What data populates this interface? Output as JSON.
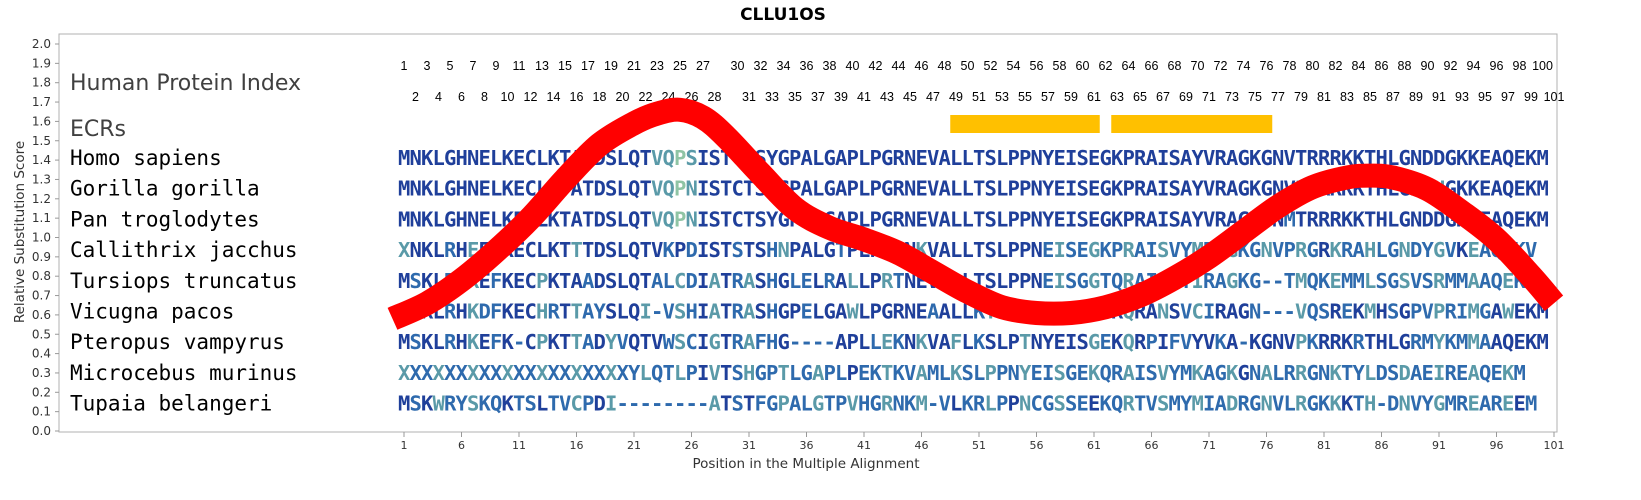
{
  "chart_data": {
    "type": "line",
    "title": "CLLU1OS",
    "xlabel": "Position in the Multiple Alignment",
    "ylabel": "Relative Substitution Score",
    "ylim": [
      0.0,
      2.0
    ],
    "xlim": [
      1,
      101
    ],
    "yticks": [
      "0.0",
      "0.1",
      "0.2",
      "0.3",
      "0.4",
      "0.5",
      "0.6",
      "0.7",
      "0.8",
      "0.9",
      "1.0",
      "1.1",
      "1.2",
      "1.3",
      "1.4",
      "1.5",
      "1.6",
      "1.7",
      "1.8",
      "1.9",
      "2.0"
    ],
    "xticks": [
      "1",
      "6",
      "11",
      "16",
      "21",
      "26",
      "31",
      "36",
      "41",
      "46",
      "51",
      "56",
      "61",
      "66",
      "71",
      "76",
      "81",
      "86",
      "91",
      "96",
      "101"
    ],
    "grid": false,
    "series": [
      {
        "color": "#ff0000",
        "x": [
          0,
          3,
          6,
          9,
          12,
          15,
          18,
          21,
          23,
          25,
          27,
          29,
          32,
          35,
          38,
          41,
          44,
          47,
          50,
          53,
          56,
          59,
          62,
          65,
          68,
          71,
          74,
          77,
          80,
          83,
          85,
          87,
          90,
          93,
          96,
          99,
          101
        ],
        "y": [
          0.58,
          0.66,
          0.78,
          0.93,
          1.1,
          1.3,
          1.48,
          1.59,
          1.64,
          1.66,
          1.62,
          1.52,
          1.33,
          1.15,
          1.05,
          0.99,
          0.92,
          0.82,
          0.72,
          0.64,
          0.61,
          0.61,
          0.64,
          0.7,
          0.79,
          0.9,
          1.03,
          1.16,
          1.26,
          1.31,
          1.32,
          1.31,
          1.25,
          1.13,
          0.99,
          0.8,
          0.66
        ]
      }
    ],
    "alignment": {
      "human_index_label": "Human Protein Index",
      "ecr_label": "ECRs",
      "human_index_top": [
        1,
        3,
        5,
        7,
        9,
        11,
        13,
        15,
        17,
        19,
        21,
        23,
        25,
        27,
        30,
        32,
        34,
        36,
        38,
        40,
        42,
        44,
        46,
        48,
        50,
        52,
        54,
        56,
        58,
        60,
        62,
        64,
        66,
        68,
        70,
        72,
        74,
        76,
        78,
        80,
        82,
        84,
        86,
        88,
        90,
        92,
        94,
        96,
        98,
        100
      ],
      "human_index_bottom": [
        2,
        4,
        6,
        8,
        10,
        12,
        14,
        16,
        18,
        20,
        22,
        24,
        26,
        28,
        31,
        33,
        35,
        37,
        39,
        41,
        43,
        45,
        47,
        49,
        51,
        53,
        55,
        57,
        59,
        61,
        63,
        65,
        67,
        69,
        71,
        73,
        75,
        77,
        79,
        81,
        83,
        85,
        87,
        89,
        91,
        93,
        95,
        97,
        99,
        101
      ],
      "ecrs": [
        {
          "start": 49,
          "end": 61
        },
        {
          "start": 63,
          "end": 76
        }
      ],
      "ecr_color": "#ffc000",
      "rows": [
        {
          "species": "Homo sapiens",
          "sequence": "MNKLGHNELKECLKTATDSLQTVQPSISTCTSYGPALGAPLPGRNEVALLTSLPPNYEISEGKPRAISAYVRAGKGNVTRRRKKTHLGNDDGKKEAQEKM"
        },
        {
          "species": "Gorilla gorilla",
          "sequence": "MNKLGHNELKECLKTATDSLQTVQPNISTCTSHGPALGAPLPGRNEVALLTSLPPNYEISEGKPRAISAYVRAGKGNVPRRRKKTHLGNDHGKKEAQEKM"
        },
        {
          "species": "Pan troglodytes",
          "sequence": "MNKLGHNELKECLKTATDSLQTVQPNISTCTSYGPALGAPLPGRNEVALLTSLPPNYEISEGKPRAISAYVRAGK-NMTRRRKKTHLGNDDGKKEAQEKM"
        },
        {
          "species": "Callithrix jacchus",
          "sequence": "XNKLRHEELKECLKTTTDSLQTVKPDISTSTSHNPALGTPLPGRNKVALLTSLPPNEISEGKPRAISVYMRAGKGNVPRGRKRAHLGNDYGVKEAQEKV"
        },
        {
          "species": "Tursiops truncatus",
          "sequence": "MSKLRHKEFKECPKTAADSLQTALCDIATRASHGLELRALLPRTNEVALLTSLPPNEISGGTQRAISVYIRAGKG--TMQKEMMLSGSVSRMMAAQEKK"
        },
        {
          "species": "Vicugna pacos",
          "sequence": "MSKLRHKDFKECHRTTAYSLQI-VSHIATRASHGPELGAWLPGRNEAALLKTLPPNCEIPRGKQRANSVCIRAGN---VQSREKMHSGPVPRIMGAWEKM"
        },
        {
          "species": "Pteropus vampyrus",
          "sequence": "MSKLRHKEFK-CPKTTADYVQTVWSCIGTRAFHG----APLLEKNKVAFLKSLPTNYEISGEKQRPIFVYVKA-KGNVPKRRKRTHLGRMYKMMAAQEKM"
        },
        {
          "species": "Microcebus murinus",
          "sequence": "XXXXXXXXXXXXXXXXXXXXYLQTLPIVTSHGPTLGAPLPEKTKVAMLKSLPPNYEISGEKQRAISVYMKAGKGNALRRGNKTYLDSDAEIREAQEKM"
        },
        {
          "species": "Tupaia belangeri",
          "sequence": "MSKWRYSKQKTSLTVCPDI--------ATSTFGPALGTPVHGRNKM-VLKRLPPNCGSSEEKQRTVSMYMIADRGNVLRGKKKTH-DNVYGMREAREEM"
        }
      ],
      "colors": {
        "conserved": "#1f3f9a",
        "mid": "#2e6aad",
        "variable": "#5a9aa8",
        "high_variable": "#8fc4a4"
      }
    }
  }
}
